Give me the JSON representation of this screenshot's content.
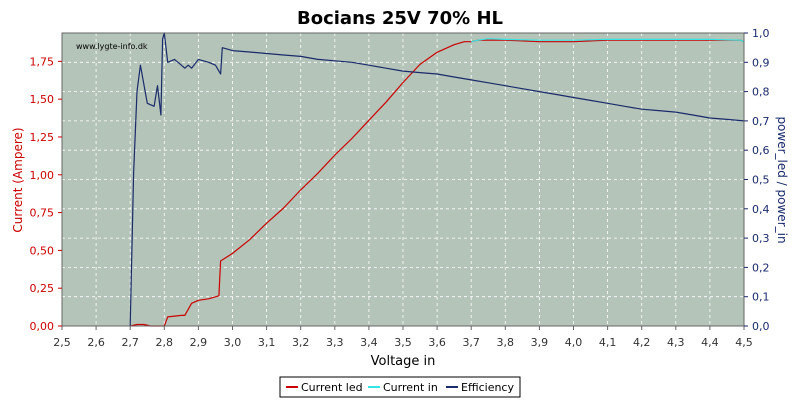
{
  "chart_data": {
    "type": "line",
    "title": "Bocians 25V 70% HL",
    "watermark": "www.lygte-info.dk",
    "xlabel": "Voltage in",
    "ylabel_left": "Current (Ampere)",
    "ylabel_right": "power_led / power_in",
    "xlim": [
      2.5,
      4.5
    ],
    "ylim_left": [
      0,
      1.9375
    ],
    "ylim_right": [
      0,
      1.0
    ],
    "x_ticks": [
      "2,5",
      "2,6",
      "2,7",
      "2,8",
      "2,9",
      "3,0",
      "3,1",
      "3,2",
      "3,3",
      "3,4",
      "3,5",
      "3,6",
      "3,7",
      "3,8",
      "3,9",
      "4,0",
      "4,1",
      "4,2",
      "4,3",
      "4,4",
      "4,5"
    ],
    "y_left_ticks": [
      "0,00",
      "0,25",
      "0,50",
      "0,75",
      "1,00",
      "1,25",
      "1,50",
      "1,75"
    ],
    "y_right_ticks": [
      "0,0",
      "0,1",
      "0,2",
      "0,3",
      "0,4",
      "0,5",
      "0,6",
      "0,7",
      "0,8",
      "0,9",
      "1,0"
    ],
    "grid": true,
    "legend_position": "bottom",
    "colors": {
      "background": "#b4c4b8",
      "current_led": "#cc0000",
      "current_in": "#33e6e6",
      "efficiency": "#1a2a6c",
      "left_axis": "#cc0000",
      "right_axis": "#1a2a6c"
    },
    "series": [
      {
        "name": "Current led",
        "axis": "left",
        "x": [
          2.7,
          2.72,
          2.74,
          2.76,
          2.78,
          2.8,
          2.81,
          2.85,
          2.86,
          2.88,
          2.9,
          2.93,
          2.96,
          2.965,
          3.0,
          3.05,
          3.1,
          3.15,
          3.2,
          3.25,
          3.3,
          3.35,
          3.4,
          3.45,
          3.5,
          3.55,
          3.6,
          3.65,
          3.68,
          3.7,
          3.72,
          3.75,
          3.8,
          3.9,
          4.0,
          4.1,
          4.2,
          4.3,
          4.4,
          4.49,
          4.5
        ],
        "y": [
          0.0,
          0.01,
          0.01,
          0.0,
          0.0,
          0.0,
          0.06,
          0.07,
          0.07,
          0.15,
          0.17,
          0.18,
          0.2,
          0.43,
          0.48,
          0.57,
          0.68,
          0.78,
          0.9,
          1.01,
          1.13,
          1.24,
          1.36,
          1.48,
          1.61,
          1.73,
          1.81,
          1.86,
          1.88,
          1.88,
          1.89,
          1.89,
          1.89,
          1.88,
          1.88,
          1.89,
          1.89,
          1.89,
          1.89,
          1.89,
          1.88
        ]
      },
      {
        "name": "Current in",
        "axis": "left",
        "x": [
          3.7,
          3.72,
          3.75,
          3.8,
          3.9,
          4.0,
          4.1,
          4.2,
          4.3,
          4.4,
          4.49,
          4.5
        ],
        "y": [
          1.88,
          1.89,
          1.9,
          1.895,
          1.89,
          1.89,
          1.895,
          1.895,
          1.895,
          1.895,
          1.89,
          1.88
        ]
      },
      {
        "name": "Efficiency",
        "axis": "right",
        "x": [
          2.7,
          2.71,
          2.72,
          2.73,
          2.75,
          2.77,
          2.78,
          2.79,
          2.795,
          2.8,
          2.81,
          2.83,
          2.85,
          2.86,
          2.87,
          2.88,
          2.9,
          2.93,
          2.95,
          2.96,
          2.965,
          2.97,
          3.0,
          3.05,
          3.1,
          3.15,
          3.2,
          3.25,
          3.3,
          3.35,
          3.4,
          3.45,
          3.5,
          3.55,
          3.6,
          3.65,
          3.7,
          3.75,
          3.8,
          3.85,
          3.9,
          3.95,
          4.0,
          4.05,
          4.1,
          4.15,
          4.2,
          4.25,
          4.3,
          4.35,
          4.4,
          4.45,
          4.5
        ],
        "y": [
          0.0,
          0.52,
          0.8,
          0.89,
          0.76,
          0.75,
          0.82,
          0.72,
          0.98,
          1.01,
          0.9,
          0.91,
          0.89,
          0.88,
          0.89,
          0.88,
          0.91,
          0.9,
          0.89,
          0.87,
          0.86,
          0.95,
          0.94,
          0.935,
          0.93,
          0.925,
          0.92,
          0.91,
          0.905,
          0.9,
          0.89,
          0.88,
          0.87,
          0.865,
          0.86,
          0.85,
          0.84,
          0.83,
          0.82,
          0.81,
          0.8,
          0.79,
          0.78,
          0.77,
          0.76,
          0.75,
          0.74,
          0.735,
          0.73,
          0.72,
          0.71,
          0.705,
          0.7
        ]
      }
    ]
  }
}
